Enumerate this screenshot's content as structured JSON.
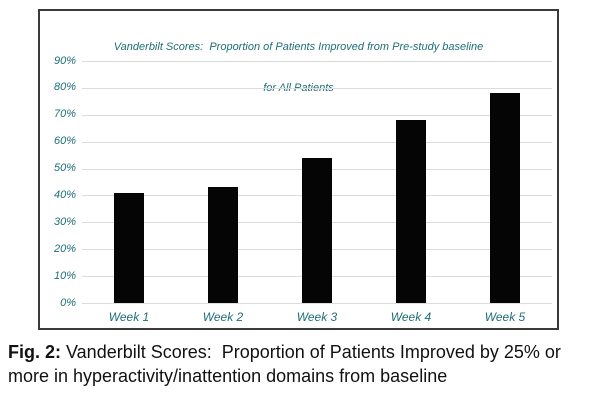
{
  "chart": {
    "title_line1": "Vanderbilt Scores:  Proportion of Patients Improved from Pre-study baseline",
    "title_line2": "for All Patients"
  },
  "chart_data": {
    "type": "bar",
    "title": "Vanderbilt Scores: Proportion of Patients Improved from Pre-study baseline for All Patients",
    "categories": [
      "Week 1",
      "Week 2",
      "Week 3",
      "Week 4",
      "Week 5"
    ],
    "values": [
      41,
      43,
      54,
      68,
      78
    ],
    "unit": "%",
    "xlabel": "",
    "ylabel": "",
    "ylim": [
      0,
      90
    ],
    "yticks": [
      0,
      10,
      20,
      30,
      40,
      50,
      60,
      70,
      80,
      90
    ],
    "ytick_labels": [
      "0%",
      "10%",
      "20%",
      "30%",
      "40%",
      "50%",
      "60%",
      "70%",
      "80%",
      "90%"
    ],
    "grid": true,
    "legend": false,
    "bar_color": "#050505"
  },
  "caption": {
    "label": "Fig. 2:",
    "text": " Vanderbilt Scores:  Proportion of Patients Improved by 25% or more in hyperactivity/inattention domains from baseline"
  },
  "colors": {
    "accent_teal": "#1e6e78",
    "gridline": "#dcdcdc",
    "bar": "#050505",
    "box_border": "#3a3a3a",
    "caption_text": "#111111",
    "background": "#ffffff"
  }
}
